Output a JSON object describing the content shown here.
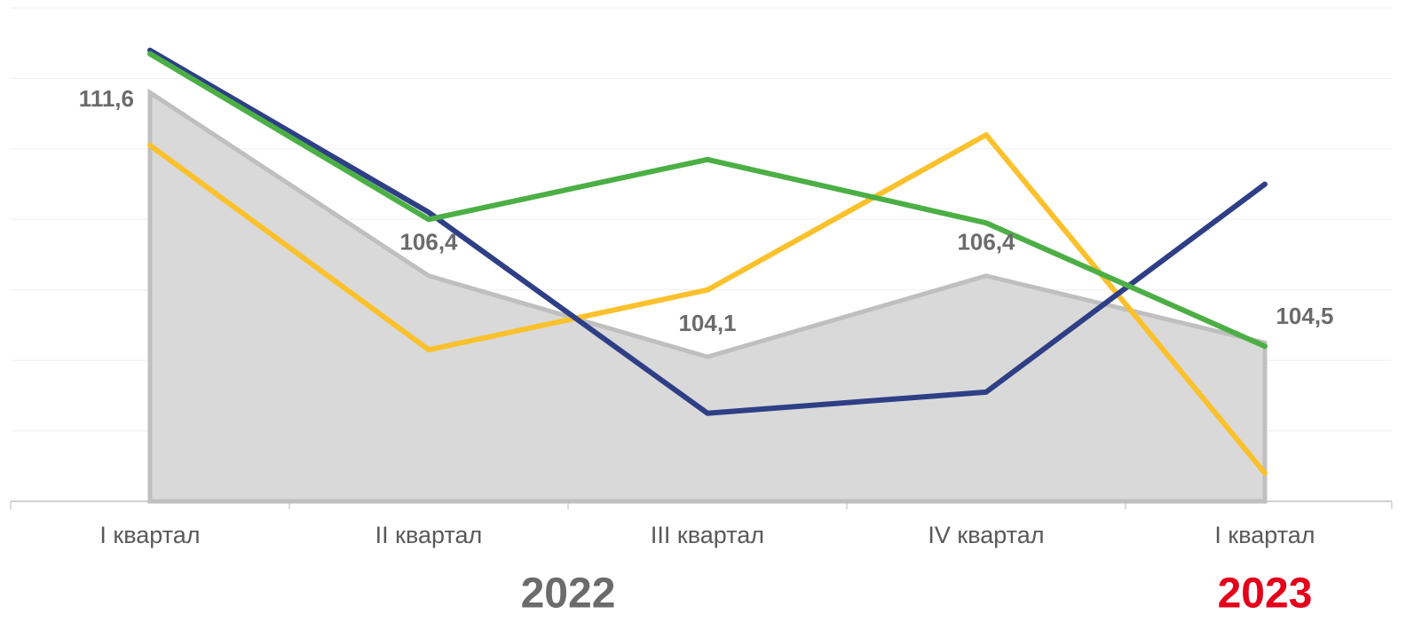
{
  "chart_data": {
    "type": "line",
    "categories": [
      "I квартал",
      "II квартал",
      "III квартал",
      "IV квартал",
      "I квартал"
    ],
    "groups": [
      {
        "label": "2022",
        "color": "#6b6b6b",
        "span": [
          0,
          3
        ]
      },
      {
        "label": "2023",
        "color": "#e3001b",
        "span": [
          4,
          4
        ]
      }
    ],
    "series": [
      {
        "color": "#bfbfbf",
        "fill": "#d9d9d9",
        "area": true,
        "values": [
          111.6,
          106.4,
          104.1,
          106.4,
          104.5
        ],
        "value_labels": [
          "111,6",
          "106,4",
          "104,1",
          "106,4",
          "104,5"
        ]
      },
      {
        "color": "#fbc12d",
        "values": [
          110.1,
          104.3,
          106.0,
          110.4,
          100.8
        ]
      },
      {
        "color": "#2e3f86",
        "values": [
          112.8,
          108.2,
          102.5,
          103.1,
          109.0
        ]
      },
      {
        "color": "#4caf45",
        "values": [
          112.7,
          108.0,
          109.7,
          107.9,
          104.4
        ]
      }
    ],
    "ylim": [
      100,
      114
    ],
    "yticks": [
      100,
      102,
      104,
      106,
      108,
      110,
      112,
      114
    ],
    "grid": true
  }
}
